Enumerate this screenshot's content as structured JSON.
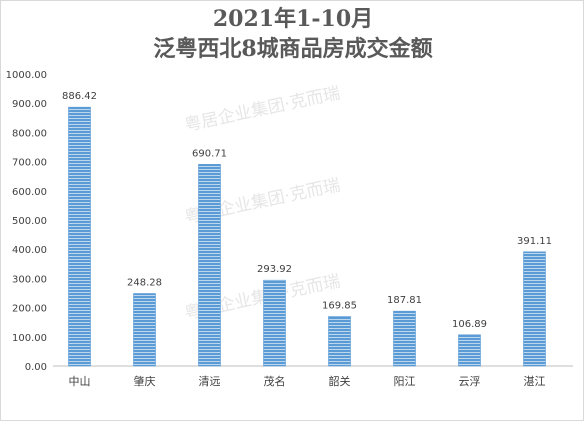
{
  "chart_data": {
    "type": "bar",
    "title": "2021年1-10月",
    "subtitle": "泛粤西北8城商品房成交金额",
    "xlabel": "",
    "ylabel": "",
    "categories": [
      "中山",
      "肇庆",
      "清远",
      "茂名",
      "韶关",
      "阳江",
      "云浮",
      "湛江"
    ],
    "values": [
      886.42,
      248.28,
      690.71,
      293.92,
      169.85,
      187.81,
      106.89,
      391.11
    ],
    "value_labels": [
      "886.42",
      "248.28",
      "690.71",
      "293.92",
      "169.85",
      "187.81",
      "106.89",
      "391.11"
    ],
    "ylim": [
      0,
      1000
    ],
    "yticks": [
      "0.00",
      "100.00",
      "200.00",
      "300.00",
      "400.00",
      "500.00",
      "600.00",
      "700.00",
      "800.00",
      "900.00",
      "1000.00"
    ],
    "grid": false,
    "legend": "none",
    "bar_color": "#5b9bd5",
    "bar_stripe_color": "#bdd7ee"
  },
  "watermark": "粤居企业集团·克而瑞"
}
